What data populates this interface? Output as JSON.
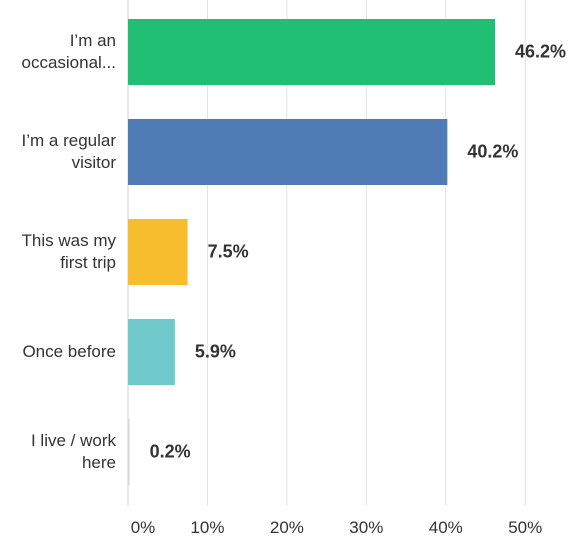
{
  "chart_data": {
    "type": "bar",
    "orientation": "horizontal",
    "categories": [
      "I’m an occasional...",
      "I’m a regular visitor",
      "This was my first trip",
      "Once before",
      "I live / work here"
    ],
    "values": [
      46.2,
      40.2,
      7.5,
      5.9,
      0.2
    ],
    "value_labels": [
      "46.2%",
      "40.2%",
      "7.5%",
      "5.9%",
      "0.2%"
    ],
    "colors": [
      "#21bf73",
      "#507cb6",
      "#f7bd2e",
      "#70cacb",
      "#d9d9d9"
    ],
    "xlim": [
      0,
      57.4
    ],
    "xticks": [
      {
        "value": 0,
        "label": "0%"
      },
      {
        "value": 10,
        "label": "10%"
      },
      {
        "value": 20,
        "label": "20%"
      },
      {
        "value": 30,
        "label": "30%"
      },
      {
        "value": 40,
        "label": "40%"
      },
      {
        "value": 50,
        "label": "50%"
      }
    ],
    "grid": true
  }
}
